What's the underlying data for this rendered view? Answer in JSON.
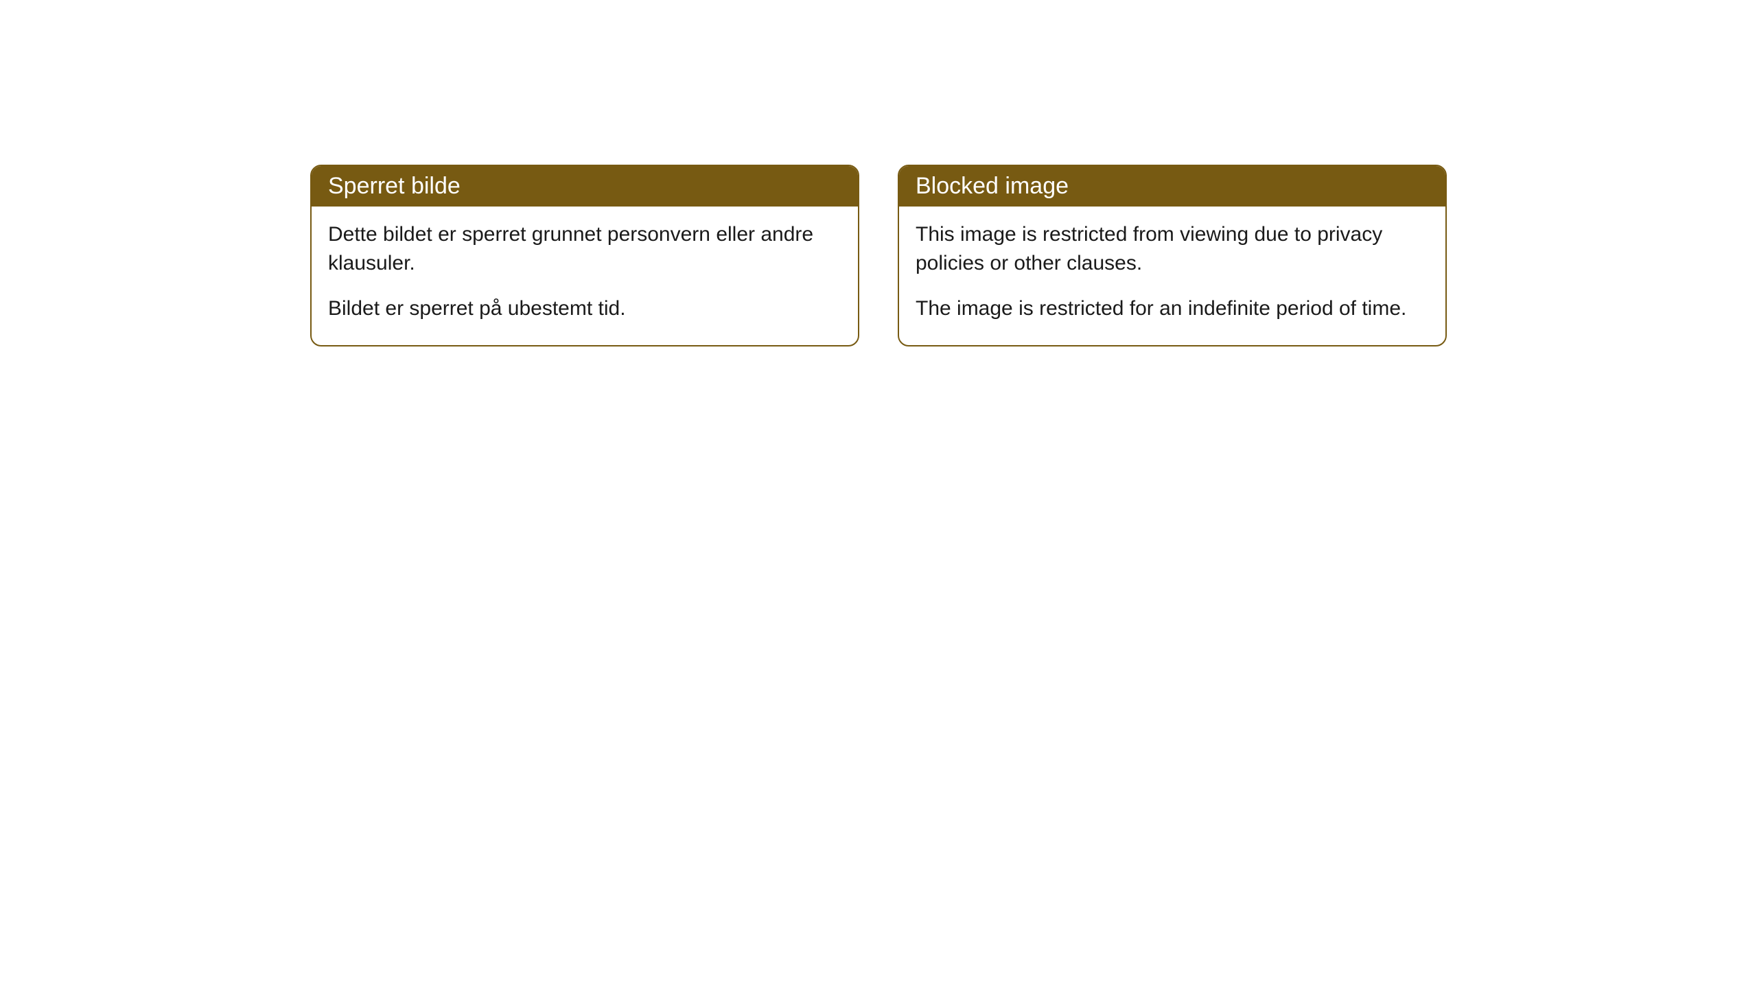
{
  "cards": [
    {
      "title": "Sperret bilde",
      "para1": "Dette bildet er sperret grunnet personvern eller andre klausuler.",
      "para2": "Bildet er sperret på ubestemt tid."
    },
    {
      "title": "Blocked image",
      "para1": "This image is restricted from viewing due to privacy policies or other clauses.",
      "para2": "The image is restricted for an indefinite period of time."
    }
  ],
  "styling": {
    "header_bg": "#775a12",
    "header_text": "#ffffff",
    "border_color": "#775a12",
    "body_bg": "#ffffff",
    "body_text": "#1a1a1a",
    "border_radius": 16,
    "title_fontsize": 34,
    "body_fontsize": 30
  }
}
